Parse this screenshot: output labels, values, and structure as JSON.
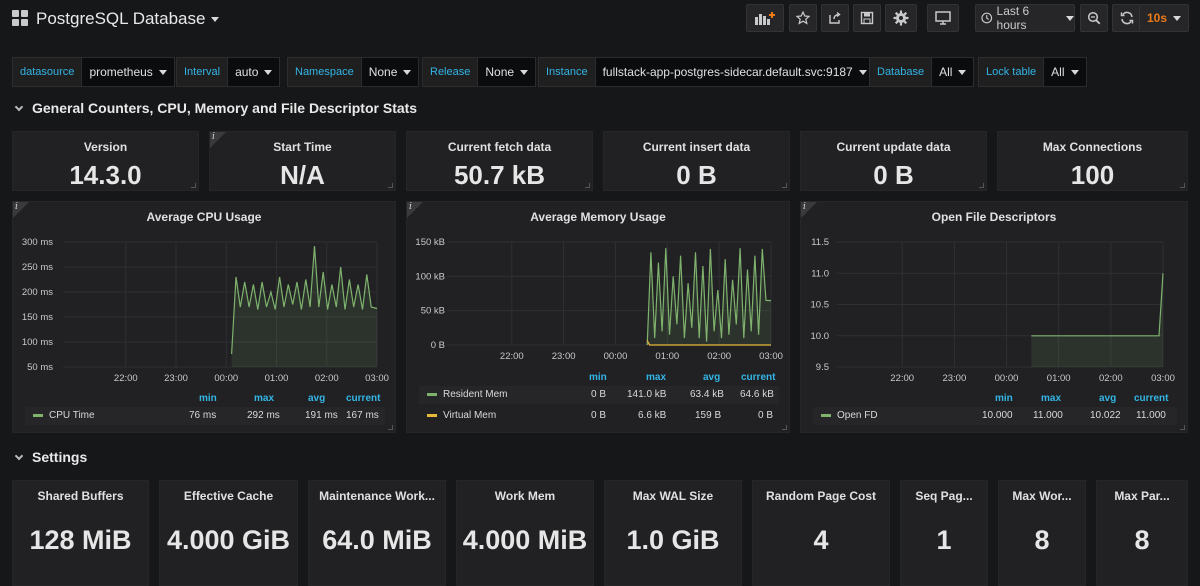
{
  "header": {
    "title": "PostgreSQL Database",
    "time_range": "Last 6 hours",
    "refresh": "10s"
  },
  "variables": [
    {
      "label": "datasource",
      "value": "prometheus"
    },
    {
      "label": "Interval",
      "value": "auto"
    },
    {
      "label": "Namespace",
      "value": "None"
    },
    {
      "label": "Release",
      "value": "None"
    },
    {
      "label": "Instance",
      "value": "fullstack-app-postgres-sidecar.default.svc:9187"
    },
    {
      "label": "Database",
      "value": "All"
    },
    {
      "label": "Lock table",
      "value": "All"
    }
  ],
  "rows": {
    "general": "General Counters, CPU, Memory and File Descriptor Stats",
    "settings": "Settings"
  },
  "stats_top": [
    {
      "title": "Version",
      "value": "14.3.0"
    },
    {
      "title": "Start Time",
      "value": "N/A"
    },
    {
      "title": "Current fetch data",
      "value": "50.7 kB"
    },
    {
      "title": "Current insert data",
      "value": "0 B"
    },
    {
      "title": "Current update data",
      "value": "0 B"
    },
    {
      "title": "Max Connections",
      "value": "100"
    }
  ],
  "stats_settings": [
    {
      "title": "Shared Buffers",
      "value": "128 MiB"
    },
    {
      "title": "Effective Cache",
      "value": "4.000 GiB"
    },
    {
      "title": "Maintenance Work...",
      "value": "64.0 MiB"
    },
    {
      "title": "Work Mem",
      "value": "4.000 MiB"
    },
    {
      "title": "Max WAL Size",
      "value": "1.0 GiB"
    },
    {
      "title": "Random Page Cost",
      "value": "4"
    },
    {
      "title": "Seq Pag...",
      "value": "1"
    },
    {
      "title": "Max Wor...",
      "value": "8"
    },
    {
      "title": "Max Par...",
      "value": "8"
    }
  ],
  "legend_headers": {
    "min": "min",
    "max": "max",
    "avg": "avg",
    "current": "current"
  },
  "colors": {
    "green": "#7eb26d",
    "yellow": "#eab839",
    "blue": "#33b5e5",
    "orange": "#eb7b18"
  },
  "chart_data": [
    {
      "type": "line",
      "title": "Average CPU Usage",
      "x_ticks": [
        "22:00",
        "23:00",
        "00:00",
        "01:00",
        "02:00",
        "03:00"
      ],
      "y_ticks": [
        "300 ms",
        "250 ms",
        "200 ms",
        "150 ms",
        "100 ms",
        "50 ms"
      ],
      "ylim": [
        50,
        300
      ],
      "series": [
        {
          "name": "CPU Time",
          "color": "#7eb26d",
          "min": "76 ms",
          "max": "292 ms",
          "avg": "191 ms",
          "current": "167 ms",
          "x": [
            0.0,
            0.03,
            0.06,
            0.09,
            0.12,
            0.15,
            0.18,
            0.21,
            0.24,
            0.27,
            0.3,
            0.33,
            0.36,
            0.39,
            0.42,
            0.45,
            0.48,
            0.51,
            0.54,
            0.57,
            0.6,
            0.63,
            0.66,
            0.69,
            0.72,
            0.75,
            0.78,
            0.81,
            0.84,
            0.87,
            0.9,
            0.93,
            0.96,
            1.0
          ],
          "values": [
            76,
            230,
            170,
            220,
            170,
            215,
            165,
            220,
            170,
            200,
            165,
            230,
            170,
            215,
            175,
            220,
            165,
            225,
            170,
            292,
            170,
            240,
            165,
            215,
            170,
            250,
            165,
            225,
            170,
            215,
            165,
            235,
            170,
            167
          ]
        }
      ]
    },
    {
      "type": "line",
      "title": "Average Memory Usage",
      "x_ticks": [
        "22:00",
        "23:00",
        "00:00",
        "01:00",
        "02:00",
        "03:00"
      ],
      "y_ticks": [
        "150 kB",
        "100 kB",
        "50 kB",
        "0 B"
      ],
      "ylim": [
        0,
        150
      ],
      "series": [
        {
          "name": "Resident Mem",
          "color": "#7eb26d",
          "min": "0 B",
          "max": "141.0 kB",
          "avg": "63.4 kB",
          "current": "64.6 kB",
          "x": [
            0.0,
            0.03,
            0.06,
            0.09,
            0.12,
            0.15,
            0.18,
            0.21,
            0.24,
            0.27,
            0.3,
            0.33,
            0.36,
            0.39,
            0.42,
            0.45,
            0.48,
            0.51,
            0.54,
            0.57,
            0.6,
            0.63,
            0.66,
            0.69,
            0.72,
            0.75,
            0.78,
            0.81,
            0.84,
            0.87,
            0.9,
            0.93,
            0.96,
            1.0
          ],
          "values": [
            0,
            135,
            10,
            120,
            20,
            141,
            15,
            100,
            30,
            130,
            10,
            90,
            25,
            135,
            10,
            115,
            5,
            140,
            20,
            80,
            10,
            125,
            15,
            95,
            30,
            141,
            10,
            110,
            20,
            130,
            15,
            140,
            65,
            64.6
          ]
        },
        {
          "name": "Virtual Mem",
          "color": "#eab839",
          "min": "0 B",
          "max": "6.6 kB",
          "avg": "159 B",
          "current": "0 B",
          "x": [
            0.0,
            0.02,
            0.04,
            1.0
          ],
          "values": [
            6.6,
            0,
            0,
            0
          ]
        }
      ]
    },
    {
      "type": "area",
      "title": "Open File Descriptors",
      "x_ticks": [
        "22:00",
        "23:00",
        "00:00",
        "01:00",
        "02:00",
        "03:00"
      ],
      "y_ticks": [
        "11.5",
        "11.0",
        "10.5",
        "10.0",
        "9.5"
      ],
      "ylim": [
        9.5,
        11.5
      ],
      "series": [
        {
          "name": "Open FD",
          "color": "#7eb26d",
          "min": "10.000",
          "max": "11.000",
          "avg": "10.022",
          "current": "11.000",
          "x": [
            0.0,
            0.97,
            1.0
          ],
          "values": [
            10,
            10,
            11
          ]
        }
      ]
    }
  ]
}
